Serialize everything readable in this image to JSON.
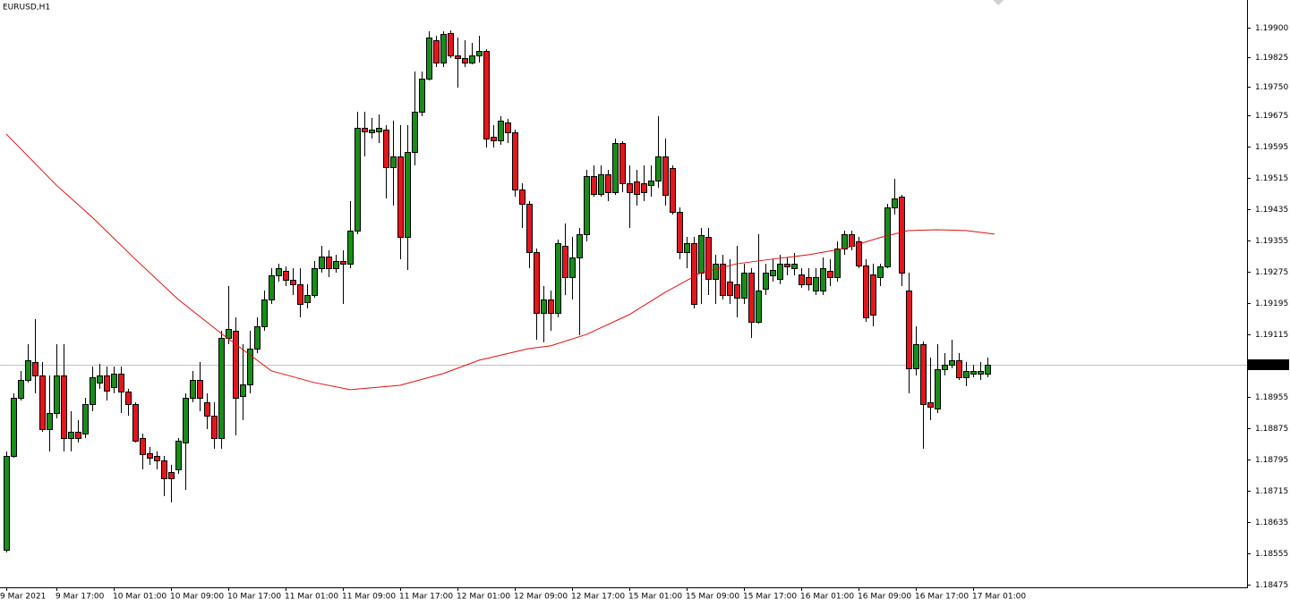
{
  "chart_data": {
    "type": "candlestick",
    "title": "EURUSD,H1",
    "up_color": "#1a8c1a",
    "down_color": "#e3161e",
    "ylim": [
      1.18468,
      1.19971
    ],
    "yticks": [
      {
        "value": 1.199,
        "label": "1.19900"
      },
      1.19825,
      {
        "value": 1.1975,
        "label": "1.19750"
      },
      1.19675,
      1.19595,
      1.19515,
      1.19435,
      1.19355,
      1.19275,
      1.19195,
      1.19115,
      1.18955,
      1.18875,
      1.18795,
      1.18715,
      1.18635,
      1.18555,
      1.18475
    ],
    "current_price": 1.19038,
    "categories": [
      "9 Mar 2021",
      null,
      null,
      null,
      null,
      null,
      null,
      "9 Mar 17:00",
      null,
      null,
      null,
      null,
      null,
      null,
      null,
      "10 Mar 01:00",
      null,
      null,
      null,
      null,
      null,
      null,
      null,
      "10 Mar 09:00",
      null,
      null,
      null,
      null,
      null,
      null,
      null,
      "10 Mar 17:00",
      null,
      null,
      null,
      null,
      null,
      null,
      null,
      "11 Mar 01:00",
      null,
      null,
      null,
      null,
      null,
      null,
      null,
      "11 Mar 09:00",
      null,
      null,
      null,
      null,
      null,
      null,
      null,
      "11 Mar 17:00",
      null,
      null,
      null,
      null,
      null,
      null,
      null,
      "12 Mar 01:00",
      null,
      null,
      null,
      null,
      null,
      null,
      null,
      "12 Mar 09:00",
      null,
      null,
      null,
      null,
      null,
      null,
      null,
      "12 Mar 17:00",
      null,
      null,
      null,
      null,
      null,
      null,
      null,
      "15 Mar 01:00",
      null,
      null,
      null,
      null,
      null,
      null,
      null,
      "15 Mar 09:00",
      null,
      null,
      null,
      null,
      null,
      null,
      null,
      "15 Mar 17:00",
      null,
      null,
      null,
      null,
      null,
      null,
      null,
      "16 Mar 01:00",
      null,
      null,
      null,
      null,
      null,
      null,
      null,
      "16 Mar 09:00",
      null,
      null,
      null,
      null,
      null,
      null,
      null,
      "16 Mar 17:00",
      null,
      null,
      null,
      null,
      null,
      null,
      null,
      "17 Mar 01:00",
      null,
      null
    ],
    "open": [
      1.18564,
      1.18804,
      1.18953,
      1.18999,
      1.19044,
      1.1901,
      1.18873,
      1.18914,
      1.1901,
      1.1885,
      1.18866,
      1.18861,
      1.18937,
      1.18992,
      1.1901,
      1.1898,
      1.19015,
      1.18969,
      1.18937,
      1.1885,
      1.18811,
      1.18804,
      1.18793,
      1.18763,
      1.1877,
      1.18839,
      1.18953,
      1.18999,
      1.18942,
      1.18907,
      1.1885,
      1.19106,
      1.19125,
      1.18958,
      1.18987,
      1.19079,
      1.19136,
      1.19205,
      1.19266,
      1.19278,
      1.19255,
      1.19244,
      1.19198,
      1.19216,
      1.19285,
      1.19314,
      1.19285,
      1.19303,
      1.19296,
      1.19381,
      1.19644,
      1.19632,
      1.19635,
      1.19639,
      1.19543,
      1.19571,
      1.19365,
      1.19582,
      1.19685,
      1.1977,
      1.19868,
      1.19811,
      1.19886,
      1.19829,
      1.19822,
      1.19811,
      1.19829,
      1.19841,
      1.19621,
      1.19612,
      1.19658,
      1.19632,
      1.19486,
      1.19449,
      1.19326,
      1.1917,
      1.19205,
      1.1917,
      1.19342,
      1.19262,
      1.19312,
      1.19372,
      1.1952,
      1.19475,
      1.19525,
      1.19479,
      1.19605,
      1.19502,
      1.19507,
      1.19502,
      1.19497,
      1.19509,
      1.19571,
      1.19541,
      1.19429,
      1.19326,
      1.19349,
      1.19273,
      1.19365,
      1.19257,
      1.19296,
      1.1925,
      1.19244,
      1.19209,
      1.19273,
      1.19147,
      1.19232,
      1.19266,
      1.19257,
      1.19296,
      1.19285,
      1.19269,
      1.19262,
      1.19227,
      1.19227,
      1.19278,
      1.19262,
      1.19335,
      1.19372,
      1.19353,
      1.19292,
      1.19269,
      1.19262,
      1.19289,
      1.1944,
      1.19468,
      1.19227,
      1.19028,
      1.1909,
      1.18942,
      1.18925,
      1.19026,
      1.19038,
      1.19049,
      1.19006,
      1.19015,
      1.19015,
      1.19015
    ],
    "high": [
      1.18816,
      1.18964,
      1.19022,
      1.1909,
      1.19154,
      1.19044,
      1.1901,
      1.1909,
      1.1909,
      1.18919,
      1.18896,
      1.18953,
      1.19033,
      1.1904,
      1.19033,
      1.19033,
      1.19033,
      1.18976,
      1.18942,
      1.18861,
      1.18827,
      1.18816,
      1.18804,
      1.18781,
      1.1885,
      1.18964,
      1.19022,
      1.19044,
      1.18964,
      1.18942,
      1.19125,
      1.19239,
      1.19159,
      1.1909,
      1.19125,
      1.19159,
      1.19227,
      1.19285,
      1.19296,
      1.19289,
      1.19285,
      1.19285,
      1.19244,
      1.19303,
      1.19342,
      1.1933,
      1.19319,
      1.1933,
      1.19456,
      1.19685,
      1.19685,
      1.19669,
      1.19678,
      1.19651,
      1.19662,
      1.19651,
      1.19651,
      1.19788,
      1.19788,
      1.19891,
      1.19879,
      1.19891,
      1.19893,
      1.19875,
      1.19868,
      1.19861,
      1.19879,
      1.19845,
      1.19651,
      1.19674,
      1.19667,
      1.19639,
      1.19502,
      1.19456,
      1.19335,
      1.19239,
      1.19227,
      1.19358,
      1.19399,
      1.19365,
      1.19388,
      1.19536,
      1.19548,
      1.19548,
      1.19536,
      1.19616,
      1.1961,
      1.19548,
      1.19536,
      1.19548,
      1.19548,
      1.19674,
      1.19616,
      1.19548,
      1.1944,
      1.19365,
      1.19365,
      1.19388,
      1.19388,
      1.19319,
      1.19319,
      1.19308,
      1.19342,
      1.19296,
      1.19285,
      1.19372,
      1.19296,
      1.19308,
      1.19319,
      1.19312,
      1.19324,
      1.19285,
      1.19285,
      1.19285,
      1.19312,
      1.19308,
      1.19353,
      1.19381,
      1.19381,
      1.19365,
      1.19308,
      1.19296,
      1.19296,
      1.19449,
      1.19513,
      1.19472,
      1.19273,
      1.19136,
      1.19097,
      1.19056,
      1.1909,
      1.19067,
      1.19102,
      1.19067,
      1.19044,
      1.19038,
      1.19044,
      1.19056
    ],
    "low": [
      1.18557,
      1.188,
      1.18946,
      1.18992,
      1.18964,
      1.18866,
      1.18816,
      1.189,
      1.18816,
      1.18816,
      1.18839,
      1.1885,
      1.18919,
      1.18976,
      1.18946,
      1.18964,
      1.18914,
      1.18907,
      1.18839,
      1.1877,
      1.18781,
      1.1877,
      1.18701,
      1.18685,
      1.18759,
      1.18717,
      1.18942,
      1.18919,
      1.18873,
      1.18823,
      1.18823,
      1.1909,
      1.18857,
      1.18896,
      1.18964,
      1.19067,
      1.19125,
      1.19193,
      1.1925,
      1.19239,
      1.19216,
      1.19159,
      1.19182,
      1.19209,
      1.19273,
      1.19262,
      1.19273,
      1.19193,
      1.19285,
      1.19372,
      1.19571,
      1.19616,
      1.19605,
      1.19463,
      1.19445,
      1.19308,
      1.1928,
      1.19548,
      1.19674,
      1.19765,
      1.19799,
      1.19799,
      1.19822,
      1.19747,
      1.19799,
      1.19806,
      1.19811,
      1.19594,
      1.19594,
      1.196,
      1.19605,
      1.19468,
      1.19388,
      1.19285,
      1.19102,
      1.19095,
      1.19125,
      1.19159,
      1.19216,
      1.19205,
      1.19113,
      1.19353,
      1.19468,
      1.19468,
      1.19456,
      1.19472,
      1.19479,
      1.19388,
      1.19445,
      1.19456,
      1.19468,
      1.19491,
      1.19445,
      1.19422,
      1.19308,
      1.19285,
      1.19182,
      1.19193,
      1.19216,
      1.19193,
      1.19205,
      1.19193,
      1.19159,
      1.19193,
      1.19106,
      1.19143,
      1.19216,
      1.1925,
      1.19244,
      1.19266,
      1.19266,
      1.19234,
      1.19227,
      1.19216,
      1.19216,
      1.19239,
      1.1925,
      1.19319,
      1.1933,
      1.19285,
      1.19147,
      1.19136,
      1.19239,
      1.19285,
      1.19422,
      1.19239,
      1.18964,
      1.1901,
      1.18823,
      1.18896,
      1.18914,
      1.1901,
      1.19028,
      1.18999,
      1.18983,
      1.19006,
      1.18999,
      1.19006
    ],
    "close": [
      1.18804,
      1.18953,
      1.18999,
      1.19049,
      1.1901,
      1.18873,
      1.18914,
      1.1901,
      1.1885,
      1.18866,
      1.1885,
      1.18937,
      1.19006,
      1.1901,
      1.18971,
      1.19015,
      1.18969,
      1.18937,
      1.18843,
      1.18809,
      1.188,
      1.18793,
      1.18747,
      1.18747,
      1.18843,
      1.18953,
      1.18999,
      1.18953,
      1.18907,
      1.1885,
      1.19106,
      1.19129,
      1.18953,
      1.18987,
      1.19079,
      1.19136,
      1.19205,
      1.19266,
      1.19285,
      1.19255,
      1.19244,
      1.19193,
      1.19216,
      1.19285,
      1.19314,
      1.19285,
      1.19303,
      1.19296,
      1.19381,
      1.19644,
      1.19635,
      1.19639,
      1.19644,
      1.19543,
      1.19571,
      1.19365,
      1.19582,
      1.19685,
      1.1977,
      1.19875,
      1.19811,
      1.19884,
      1.19829,
      1.19822,
      1.19811,
      1.19829,
      1.19841,
      1.19616,
      1.19612,
      1.19662,
      1.19632,
      1.19486,
      1.19449,
      1.19326,
      1.1917,
      1.19205,
      1.1917,
      1.19349,
      1.19262,
      1.19312,
      1.19372,
      1.1952,
      1.19475,
      1.19525,
      1.19479,
      1.19605,
      1.19502,
      1.19479,
      1.19475,
      1.19479,
      1.19509,
      1.19571,
      1.19472,
      1.19429,
      1.19326,
      1.19349,
      1.19193,
      1.19369,
      1.19257,
      1.19296,
      1.19216,
      1.19216,
      1.19209,
      1.19273,
      1.19147,
      1.19227,
      1.19273,
      1.1928,
      1.19296,
      1.19289,
      1.19296,
      1.19244,
      1.19244,
      1.19262,
      1.19285,
      1.19262,
      1.19335,
      1.19372,
      1.19342,
      1.19292,
      1.19159,
      1.19166,
      1.19289,
      1.1944,
      1.19463,
      1.19273,
      1.19028,
      1.1909,
      1.18937,
      1.1893,
      1.19026,
      1.19038,
      1.19049,
      1.19006,
      1.19022,
      1.19022,
      1.19022,
      1.19038
    ],
    "ma": {
      "color": "#e01010",
      "x": [
        0,
        7,
        12,
        18,
        24,
        30,
        37,
        43,
        48,
        55,
        61,
        66,
        73,
        76,
        81,
        87,
        92,
        97,
        102,
        107,
        112,
        117,
        122,
        126,
        130,
        134,
        138
      ],
      "values": [
        1.19628,
        1.19497,
        1.19415,
        1.19308,
        1.19205,
        1.19118,
        1.19022,
        1.18992,
        1.18974,
        1.18985,
        1.19015,
        1.19049,
        1.19079,
        1.19086,
        1.19115,
        1.19166,
        1.19223,
        1.19273,
        1.19296,
        1.19308,
        1.19319,
        1.19335,
        1.19363,
        1.19381,
        1.19383,
        1.19381,
        1.19372
      ]
    }
  }
}
